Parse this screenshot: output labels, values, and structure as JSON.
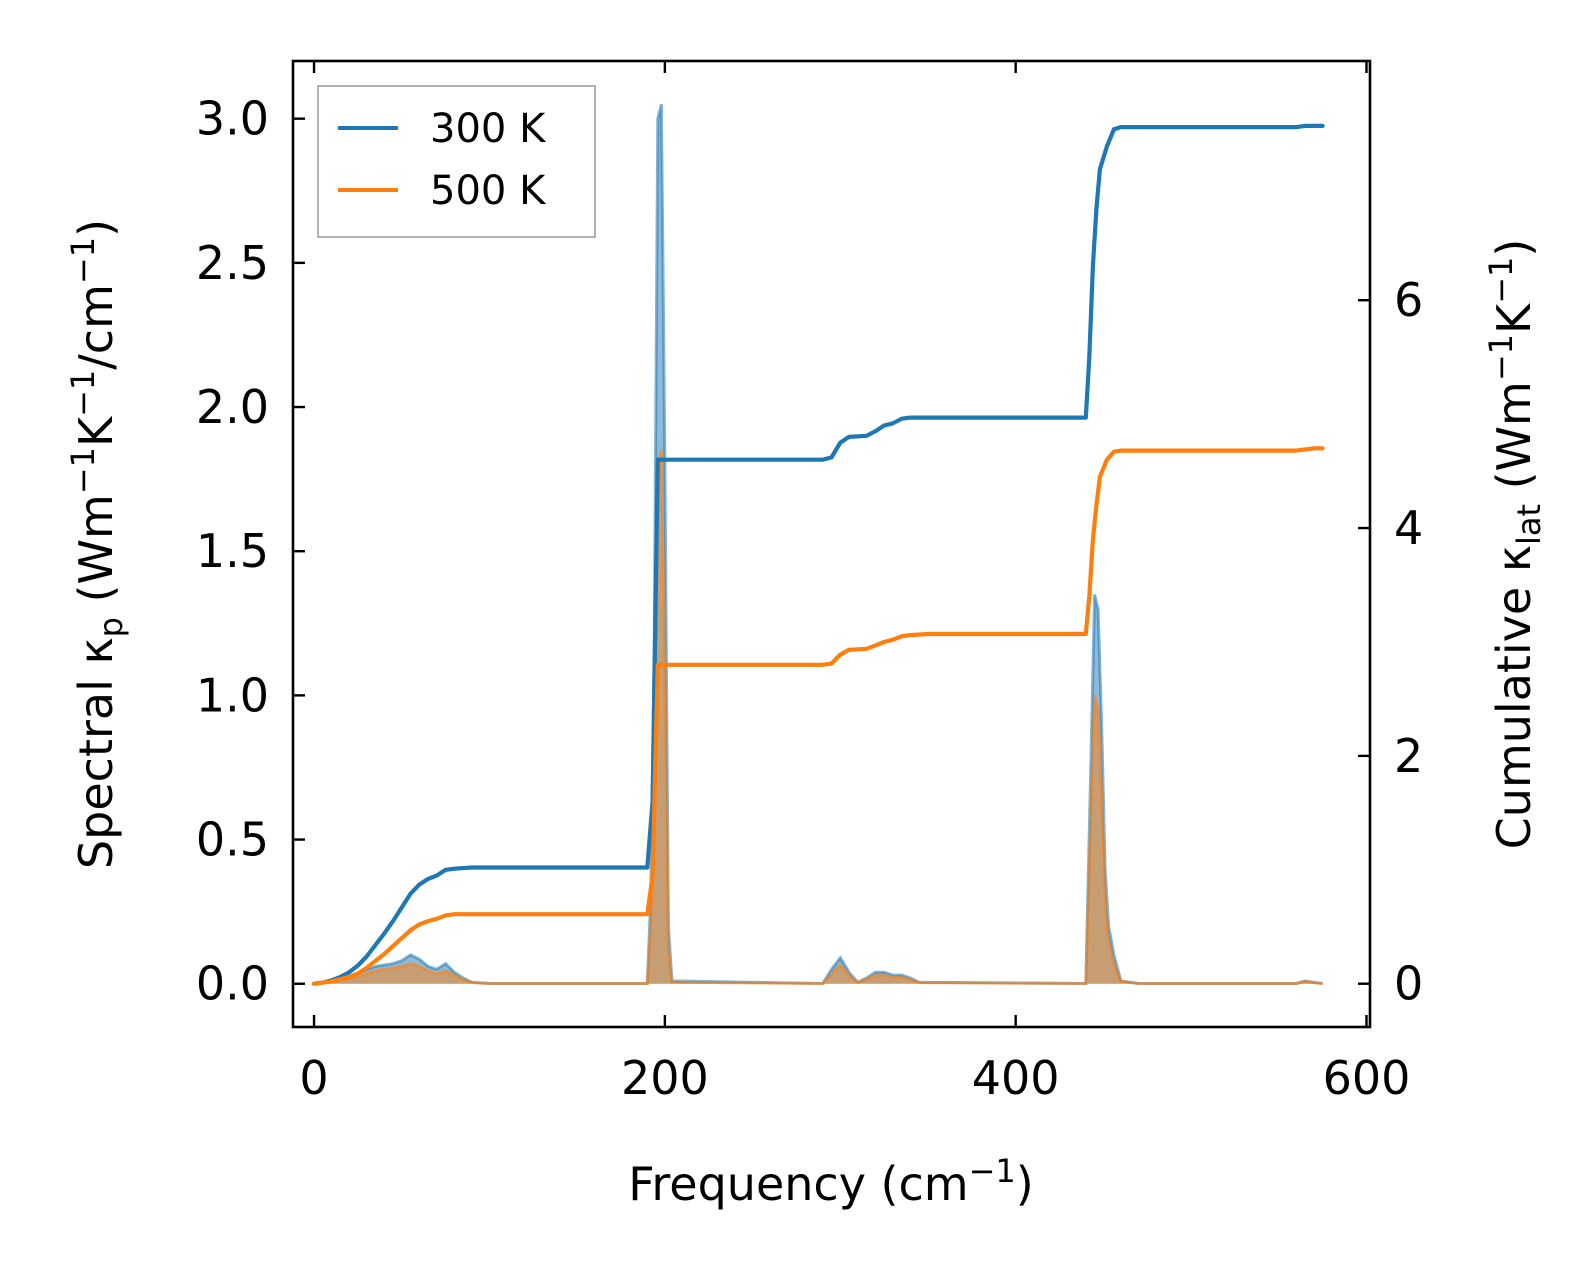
{
  "chart_data": {
    "type": "line",
    "xlabel": {
      "main": "Frequency (cm",
      "sup": "−1",
      "end": ")"
    },
    "ylabel_left": {
      "main": "Spectral κ",
      "sub": "p",
      "units_a": " (Wm",
      "sup_a": "−1",
      "units_b": "K",
      "sup_b": "−1",
      "units_c": "/cm",
      "sup_c": "−1",
      "end": ")"
    },
    "ylabel_right": {
      "main": "Cumulative κ",
      "sub": "lat",
      "units_a": " (Wm",
      "sup_a": "−1",
      "units_b": "K",
      "sup_b": "−1",
      "end": ")"
    },
    "xlim": [
      -12,
      602
    ],
    "ylim_left": [
      -0.15,
      3.2
    ],
    "ylim_right": [
      -0.38,
      8.1
    ],
    "xticks": [
      0,
      200,
      400,
      600
    ],
    "xtick_labels": [
      "0",
      "200",
      "400",
      "600"
    ],
    "yticks_left": [
      0.0,
      0.5,
      1.0,
      1.5,
      2.0,
      2.5,
      3.0
    ],
    "ytick_labels_left": [
      "0.0",
      "0.5",
      "1.0",
      "1.5",
      "2.0",
      "2.5",
      "3.0"
    ],
    "yticks_right": [
      0,
      2,
      4,
      6
    ],
    "ytick_labels_right": [
      "0",
      "2",
      "4",
      "6"
    ],
    "legend_position": "top-left",
    "series": [
      {
        "name": "300 K",
        "color": "#1f77b4",
        "cumulative": [
          [
            0,
            0
          ],
          [
            5,
            0.01
          ],
          [
            10,
            0.03
          ],
          [
            15,
            0.06
          ],
          [
            20,
            0.1
          ],
          [
            25,
            0.16
          ],
          [
            30,
            0.24
          ],
          [
            35,
            0.34
          ],
          [
            40,
            0.44
          ],
          [
            45,
            0.55
          ],
          [
            50,
            0.67
          ],
          [
            55,
            0.79
          ],
          [
            60,
            0.87
          ],
          [
            65,
            0.92
          ],
          [
            70,
            0.95
          ],
          [
            75,
            1.0
          ],
          [
            80,
            1.01
          ],
          [
            90,
            1.02
          ],
          [
            190,
            1.02
          ],
          [
            193,
            1.6
          ],
          [
            196,
            4.6
          ],
          [
            200,
            4.6
          ],
          [
            290,
            4.6
          ],
          [
            295,
            4.62
          ],
          [
            300,
            4.75
          ],
          [
            305,
            4.8
          ],
          [
            315,
            4.81
          ],
          [
            320,
            4.85
          ],
          [
            325,
            4.9
          ],
          [
            330,
            4.92
          ],
          [
            335,
            4.96
          ],
          [
            340,
            4.97
          ],
          [
            350,
            4.97
          ],
          [
            440,
            4.97
          ],
          [
            442,
            5.5
          ],
          [
            444,
            6.3
          ],
          [
            446,
            6.8
          ],
          [
            448,
            7.15
          ],
          [
            452,
            7.35
          ],
          [
            456,
            7.5
          ],
          [
            460,
            7.52
          ],
          [
            470,
            7.52
          ],
          [
            560,
            7.52
          ],
          [
            565,
            7.53
          ],
          [
            570,
            7.53
          ],
          [
            575,
            7.53
          ]
        ],
        "spectral": [
          [
            0,
            0
          ],
          [
            5,
            0.004
          ],
          [
            10,
            0.01
          ],
          [
            15,
            0.02
          ],
          [
            20,
            0.025
          ],
          [
            25,
            0.035
          ],
          [
            30,
            0.05
          ],
          [
            35,
            0.06
          ],
          [
            40,
            0.065
          ],
          [
            45,
            0.07
          ],
          [
            50,
            0.08
          ],
          [
            55,
            0.1
          ],
          [
            60,
            0.085
          ],
          [
            65,
            0.06
          ],
          [
            70,
            0.05
          ],
          [
            75,
            0.07
          ],
          [
            80,
            0.04
          ],
          [
            85,
            0.02
          ],
          [
            90,
            0.005
          ],
          [
            100,
            0.001
          ],
          [
            190,
            0.001
          ],
          [
            192,
            0.3
          ],
          [
            194,
            1.2
          ],
          [
            196,
            3.0
          ],
          [
            198,
            3.05
          ],
          [
            200,
            1.8
          ],
          [
            202,
            0.2
          ],
          [
            204,
            0.01
          ],
          [
            290,
            0.001
          ],
          [
            295,
            0.05
          ],
          [
            300,
            0.09
          ],
          [
            305,
            0.04
          ],
          [
            310,
            0.005
          ],
          [
            315,
            0.02
          ],
          [
            320,
            0.04
          ],
          [
            325,
            0.04
          ],
          [
            330,
            0.03
          ],
          [
            335,
            0.03
          ],
          [
            340,
            0.02
          ],
          [
            345,
            0.005
          ],
          [
            440,
            0.001
          ],
          [
            443,
            0.8
          ],
          [
            445,
            1.35
          ],
          [
            447,
            1.3
          ],
          [
            449,
            0.9
          ],
          [
            451,
            0.4
          ],
          [
            453,
            0.2
          ],
          [
            456,
            0.1
          ],
          [
            460,
            0.01
          ],
          [
            470,
            0.001
          ],
          [
            560,
            0.001
          ],
          [
            565,
            0.01
          ],
          [
            570,
            0.005
          ],
          [
            575,
            0.001
          ]
        ]
      },
      {
        "name": "500 K",
        "color": "#ff7f0e",
        "cumulative": [
          [
            0,
            0
          ],
          [
            5,
            0.01
          ],
          [
            10,
            0.02
          ],
          [
            15,
            0.04
          ],
          [
            20,
            0.06
          ],
          [
            25,
            0.09
          ],
          [
            30,
            0.14
          ],
          [
            35,
            0.2
          ],
          [
            40,
            0.26
          ],
          [
            45,
            0.33
          ],
          [
            50,
            0.4
          ],
          [
            55,
            0.47
          ],
          [
            60,
            0.52
          ],
          [
            65,
            0.55
          ],
          [
            70,
            0.57
          ],
          [
            75,
            0.6
          ],
          [
            80,
            0.61
          ],
          [
            90,
            0.61
          ],
          [
            190,
            0.61
          ],
          [
            193,
            0.95
          ],
          [
            196,
            2.8
          ],
          [
            200,
            2.8
          ],
          [
            290,
            2.8
          ],
          [
            295,
            2.81
          ],
          [
            300,
            2.89
          ],
          [
            305,
            2.93
          ],
          [
            315,
            2.94
          ],
          [
            320,
            2.97
          ],
          [
            325,
            3.0
          ],
          [
            330,
            3.02
          ],
          [
            335,
            3.05
          ],
          [
            340,
            3.06
          ],
          [
            350,
            3.07
          ],
          [
            440,
            3.07
          ],
          [
            442,
            3.4
          ],
          [
            444,
            3.9
          ],
          [
            446,
            4.2
          ],
          [
            448,
            4.45
          ],
          [
            452,
            4.6
          ],
          [
            456,
            4.67
          ],
          [
            460,
            4.68
          ],
          [
            470,
            4.68
          ],
          [
            560,
            4.68
          ],
          [
            565,
            4.69
          ],
          [
            570,
            4.7
          ],
          [
            575,
            4.7
          ]
        ],
        "spectral": [
          [
            0,
            0
          ],
          [
            5,
            0.003
          ],
          [
            10,
            0.006
          ],
          [
            15,
            0.012
          ],
          [
            20,
            0.018
          ],
          [
            25,
            0.025
          ],
          [
            30,
            0.035
          ],
          [
            35,
            0.045
          ],
          [
            40,
            0.05
          ],
          [
            45,
            0.055
          ],
          [
            50,
            0.06
          ],
          [
            55,
            0.07
          ],
          [
            60,
            0.06
          ],
          [
            65,
            0.045
          ],
          [
            70,
            0.035
          ],
          [
            75,
            0.045
          ],
          [
            80,
            0.03
          ],
          [
            85,
            0.015
          ],
          [
            90,
            0.004
          ],
          [
            100,
            0.001
          ],
          [
            190,
            0.001
          ],
          [
            192,
            0.2
          ],
          [
            194,
            0.8
          ],
          [
            196,
            1.8
          ],
          [
            198,
            1.85
          ],
          [
            200,
            1.1
          ],
          [
            202,
            0.12
          ],
          [
            204,
            0.005
          ],
          [
            290,
            0.001
          ],
          [
            295,
            0.035
          ],
          [
            300,
            0.065
          ],
          [
            305,
            0.03
          ],
          [
            310,
            0.004
          ],
          [
            315,
            0.015
          ],
          [
            320,
            0.03
          ],
          [
            325,
            0.03
          ],
          [
            330,
            0.022
          ],
          [
            335,
            0.022
          ],
          [
            340,
            0.015
          ],
          [
            345,
            0.004
          ],
          [
            440,
            0.001
          ],
          [
            443,
            0.6
          ],
          [
            445,
            1.0
          ],
          [
            447,
            0.95
          ],
          [
            449,
            0.65
          ],
          [
            451,
            0.3
          ],
          [
            453,
            0.15
          ],
          [
            456,
            0.07
          ],
          [
            460,
            0.008
          ],
          [
            470,
            0.001
          ],
          [
            560,
            0.001
          ],
          [
            565,
            0.008
          ],
          [
            570,
            0.004
          ],
          [
            575,
            0.001
          ]
        ]
      }
    ]
  }
}
